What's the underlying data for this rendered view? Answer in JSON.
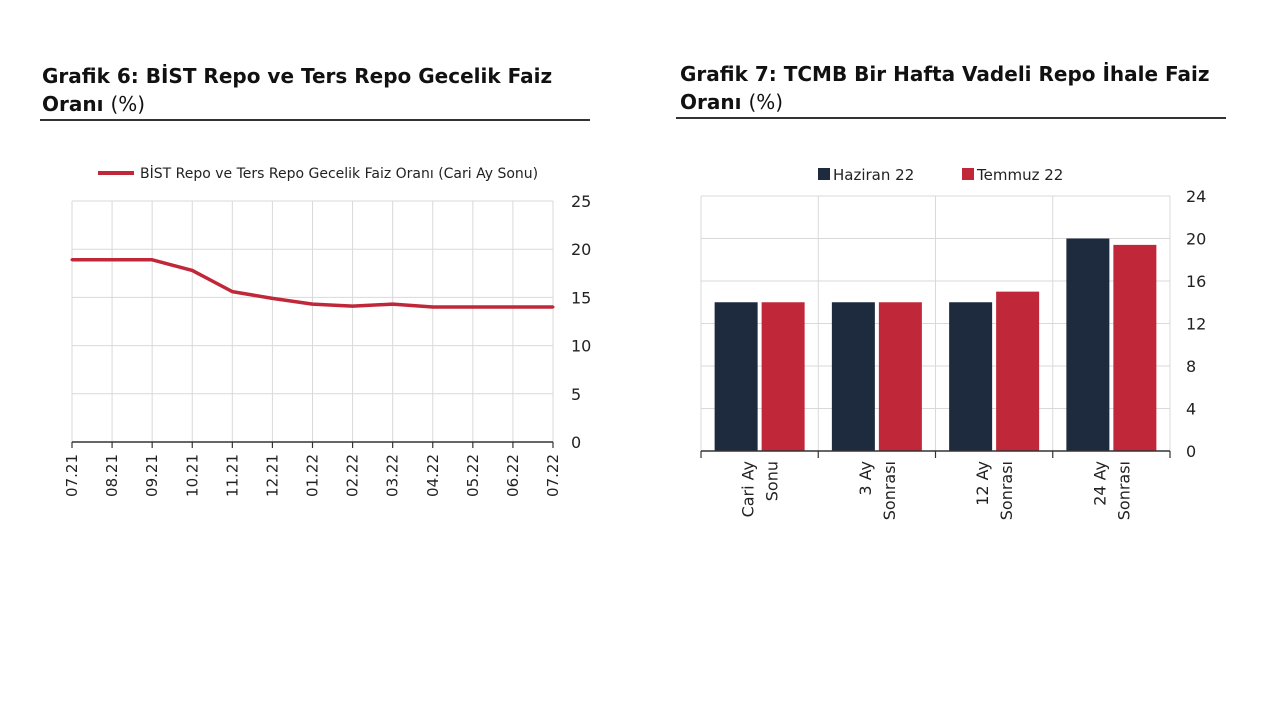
{
  "charts": [
    {
      "title": "Grafik 6:  BİST Repo ve Ters Repo Gecelik Faiz Oranı",
      "unit": "(%)"
    },
    {
      "title": "Grafik 7: TCMB Bir Hafta Vadeli Repo İhale Faiz Oranı",
      "unit": "(%)"
    }
  ],
  "chart_data": [
    {
      "type": "line",
      "title": "Grafik 6:  BİST Repo ve Ters Repo Gecelik Faiz Oranı (%)",
      "categories": [
        "07.21",
        "08.21",
        "09.21",
        "10.21",
        "11.21",
        "12.21",
        "01.22",
        "02.22",
        "03.22",
        "04.22",
        "05.22",
        "06.22",
        "07.22"
      ],
      "series": [
        {
          "name": "BİST Repo ve Ters Repo Gecelik Faiz Oranı (Cari Ay Sonu)",
          "color": "#c0283a",
          "values": [
            18.9,
            18.9,
            18.9,
            17.8,
            15.6,
            14.9,
            14.3,
            14.1,
            14.3,
            14.0,
            14.0,
            14.0,
            14.0
          ]
        }
      ],
      "ylim": [
        0,
        25
      ],
      "yticks": [
        0,
        5,
        10,
        15,
        20,
        25
      ],
      "grid": true,
      "legend_position": "top"
    },
    {
      "type": "bar",
      "title": "Grafik 7: TCMB Bir Hafta Vadeli Repo İhale Faiz Oranı (%)",
      "categories": [
        [
          "Cari Ay",
          "Sonu"
        ],
        [
          "3 Ay",
          "Sonrası"
        ],
        [
          "12 Ay",
          "Sonrası"
        ],
        [
          "24 Ay",
          "Sonrası"
        ]
      ],
      "series": [
        {
          "name": "Haziran 22",
          "color": "#1e2b3e",
          "values": [
            14,
            14,
            14,
            20
          ]
        },
        {
          "name": "Temmuz 22",
          "color": "#c0283a",
          "values": [
            14,
            14,
            15,
            19.4
          ]
        }
      ],
      "ylim": [
        0,
        24
      ],
      "yticks": [
        0,
        4,
        8,
        12,
        16,
        20,
        24
      ],
      "grid": true,
      "legend_position": "top"
    }
  ]
}
